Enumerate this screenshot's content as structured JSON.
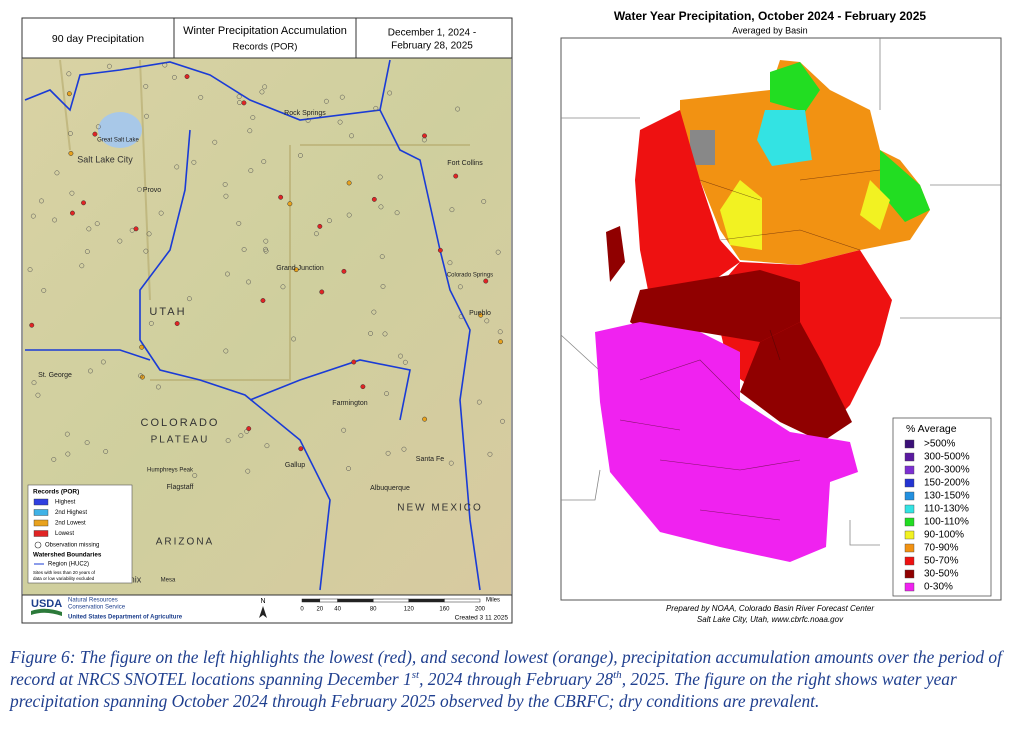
{
  "left_map": {
    "header": {
      "left": "90 day Precipitation",
      "title": "Winter Precipitation Accumulation",
      "subtitle": "Records (POR)",
      "dates": [
        "December 1, 2024 -",
        "February 28, 2025"
      ]
    },
    "places": [
      "Salt Lake City",
      "Great Salt Lake",
      "Provo",
      "Rock Springs",
      "Fort Collins",
      "Grand Junction",
      "St. George",
      "Farmington",
      "Gallup",
      "Flagstaff",
      "Humphreys Peak",
      "Santa Fe",
      "Albuquerque",
      "Phoenix",
      "Mesa",
      "Pueblo",
      "Colorado Springs",
      "UTAH",
      "ARIZONA",
      "NEW MEXICO",
      "COLORADO",
      "PLATEAU"
    ],
    "legend": {
      "title": "Records (POR)",
      "items": [
        {
          "label": "Highest",
          "color": "#2f3fe0"
        },
        {
          "label": "2nd Highest",
          "color": "#3fb2e6"
        },
        {
          "label": "2nd Lowest",
          "color": "#e8a21e"
        },
        {
          "label": "Lowest",
          "color": "#e02424"
        }
      ],
      "missing": "Observation missing",
      "watershed_title": "Watershed Boundaries",
      "region": "Region (HUC2)",
      "note": [
        "Sites with less than 20 years of",
        "data or low variability excluded"
      ]
    },
    "footer": {
      "agency": "USDA",
      "lines": [
        "Natural Resources",
        "Conservation Service"
      ],
      "department": "United States Department of Agriculture",
      "north": "N",
      "scale_ticks": [
        0,
        20,
        40,
        80,
        120,
        160,
        200
      ],
      "scale_unit": "Miles",
      "created": "Created 3 11 2025"
    }
  },
  "right_map": {
    "title": "Water Year Precipitation, October 2024 - February 2025",
    "subtitle": "Averaged by Basin",
    "legend": {
      "title": "% Average",
      "items": [
        {
          "label": ">500%",
          "color": "#3b1078"
        },
        {
          "label": "300-500%",
          "color": "#5a1aa0"
        },
        {
          "label": "200-300%",
          "color": "#7d30d2"
        },
        {
          "label": "150-200%",
          "color": "#2334d2"
        },
        {
          "label": "130-150%",
          "color": "#2290e0"
        },
        {
          "label": "110-130%",
          "color": "#33e3e3"
        },
        {
          "label": "100-110%",
          "color": "#22dd22"
        },
        {
          "label": "90-100%",
          "color": "#f2f222"
        },
        {
          "label": "70-90%",
          "color": "#f29212"
        },
        {
          "label": "50-70%",
          "color": "#ee1111"
        },
        {
          "label": "30-50%",
          "color": "#900000"
        },
        {
          "label": "0-30%",
          "color": "#f022f0"
        }
      ]
    },
    "credit": [
      "Prepared by NOAA, Colorado Basin River Forecast Center",
      "Salt Lake City, Utah, www.cbrfc.noaa.gov"
    ]
  },
  "caption": [
    "Figure 6:  The figure on the left highlights the lowest (red), and second lowest (orange), precipitation accumulation amounts over the period of record at NRCS SNOTEL locations spanning December 1",
    "st",
    ", 2024 through February 28",
    "th",
    ", 2025.  The figure on the right shows water year precipitation spanning October 2024 through February 2025 observed by the CBRFC; dry conditions are prevalent."
  ]
}
